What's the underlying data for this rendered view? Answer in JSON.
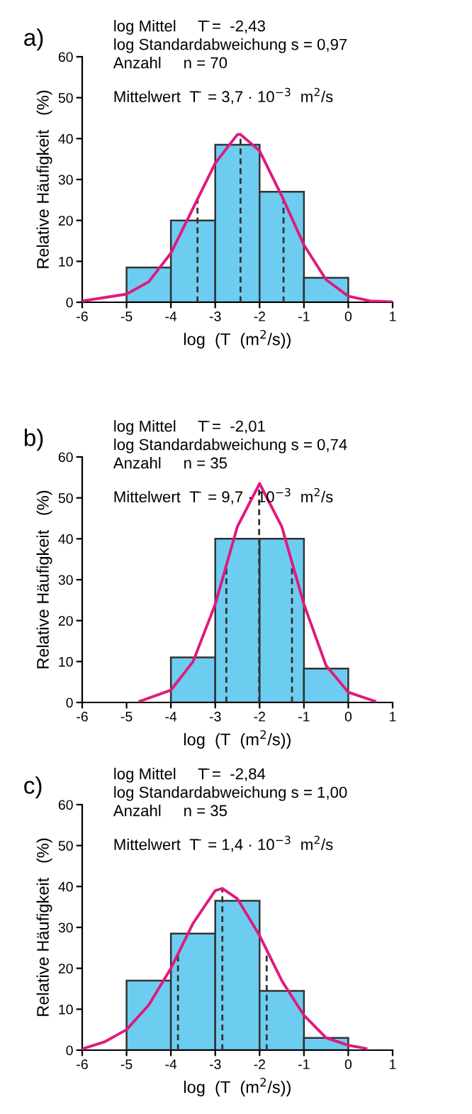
{
  "chart_data": [
    {
      "type": "histogram",
      "title": "a)",
      "xlabel": "log  (T  (m$^{2}$/s))",
      "ylabel": "Relative Häufigkeit   (%)",
      "annotations": [
        "log Mittel     T̄ =  -2,43",
        "log Standardabweichung s = 0,97",
        "Anzahl     n = 70",
        "Mittelwert  T̄  = 3,7 · 10$^{−3}$  m$^{2}$/s"
      ],
      "bins": [
        -5,
        -4,
        -3,
        -2,
        -1,
        0
      ],
      "values": [
        8.5,
        20,
        38.5,
        27,
        6
      ],
      "color": "#6dcdf0",
      "series": [
        {
          "type": "line",
          "color": "#e0197d",
          "x": [
            -6,
            -5,
            -4.5,
            -4,
            -3.5,
            -3,
            -2.5,
            -2.43,
            -2,
            -1.5,
            -1,
            -0.5,
            0,
            0.5,
            1
          ],
          "values": [
            0.3,
            2,
            5,
            12,
            23,
            34,
            41,
            41,
            37,
            26,
            14,
            5.5,
            1.5,
            0.3,
            0.1
          ]
        }
      ],
      "ref_lines": [
        {
          "axis": "x",
          "value": -3.4,
          "line_style": "dashed",
          "color": "#333333"
        },
        {
          "axis": "x",
          "value": -2.43,
          "line_style": "dashed",
          "color": "#333333"
        },
        {
          "axis": "x",
          "value": -1.46,
          "line_style": "dashed",
          "color": "#333333"
        }
      ],
      "xlim": [
        -6,
        1
      ],
      "xticks": [
        -6,
        -5,
        -4,
        -3,
        -2,
        -1,
        0,
        1
      ],
      "ylim": [
        0,
        60
      ],
      "yticks": [
        0,
        10,
        20,
        30,
        40,
        50,
        60
      ],
      "grid": false
    },
    {
      "type": "histogram",
      "title": "b)",
      "xlabel": "log  (T  (m$^{2}$/s))",
      "ylabel": "Relative Häufigkeit   (%)",
      "annotations": [
        "log Mittel     T̄ =  -2,01",
        "log Standardabweichung s = 0,74",
        "Anzahl     n = 35",
        "Mittelwert  T̄  = 9,7 · 10$^{−3}$  m$^{2}$/s"
      ],
      "bins": [
        -4,
        -3,
        -2,
        -1,
        0
      ],
      "values": [
        11,
        40,
        40,
        8.3
      ],
      "color": "#6dcdf0",
      "series": [
        {
          "type": "line",
          "color": "#e0197d",
          "x": [
            -4.7,
            -4,
            -3.5,
            -3,
            -2.5,
            -2,
            -1.5,
            -1,
            -0.5,
            0,
            0.6
          ],
          "values": [
            0.3,
            3,
            10,
            24,
            43,
            53.5,
            43,
            24,
            9,
            2.5,
            0.3
          ]
        }
      ],
      "ref_lines": [
        {
          "axis": "x",
          "value": -2.75,
          "line_style": "dashed",
          "color": "#333333"
        },
        {
          "axis": "x",
          "value": -2.01,
          "line_style": "dashed",
          "color": "#333333"
        },
        {
          "axis": "x",
          "value": -1.27,
          "line_style": "dashed",
          "color": "#333333"
        }
      ],
      "xlim": [
        -6,
        1
      ],
      "xticks": [
        -6,
        -5,
        -4,
        -3,
        -2,
        -1,
        0,
        1
      ],
      "ylim": [
        0,
        60
      ],
      "yticks": [
        0,
        10,
        20,
        30,
        40,
        50,
        60
      ],
      "grid": false
    },
    {
      "type": "histogram",
      "title": "c)",
      "xlabel": "log  (T  (m$^{2}$/s))",
      "ylabel": "Relative Häufigkeit   (%)",
      "annotations": [
        "log Mittel     T̄ =  -2,84",
        "log Standardabweichung s = 1,00",
        "Anzahl     n = 35",
        "Mittelwert  T̄  = 1,4 · 10$^{−3}$  m$^{2}$/s"
      ],
      "bins": [
        -5,
        -4,
        -3,
        -2,
        -1,
        0
      ],
      "values": [
        17,
        28.5,
        36.5,
        14.5,
        3
      ],
      "color": "#6dcdf0",
      "series": [
        {
          "type": "line",
          "color": "#e0197d",
          "x": [
            -6,
            -5.5,
            -5,
            -4.5,
            -4,
            -3.5,
            -3,
            -2.84,
            -2.5,
            -2,
            -1.5,
            -1,
            -0.5,
            0,
            0.4
          ],
          "values": [
            0.3,
            2,
            5,
            11,
            20,
            31,
            39,
            39.5,
            37,
            28,
            17,
            8.5,
            3,
            1.2,
            0.4
          ]
        }
      ],
      "ref_lines": [
        {
          "axis": "x",
          "value": -3.84,
          "line_style": "dashed",
          "color": "#333333"
        },
        {
          "axis": "x",
          "value": -2.84,
          "line_style": "dashed",
          "color": "#333333"
        },
        {
          "axis": "x",
          "value": -1.84,
          "line_style": "dashed",
          "color": "#333333"
        }
      ],
      "xlim": [
        -6,
        1
      ],
      "xticks": [
        -6,
        -5,
        -4,
        -3,
        -2,
        -1,
        0,
        1
      ],
      "ylim": [
        0,
        60
      ],
      "yticks": [
        0,
        10,
        20,
        30,
        40,
        50,
        60
      ],
      "grid": false
    }
  ]
}
